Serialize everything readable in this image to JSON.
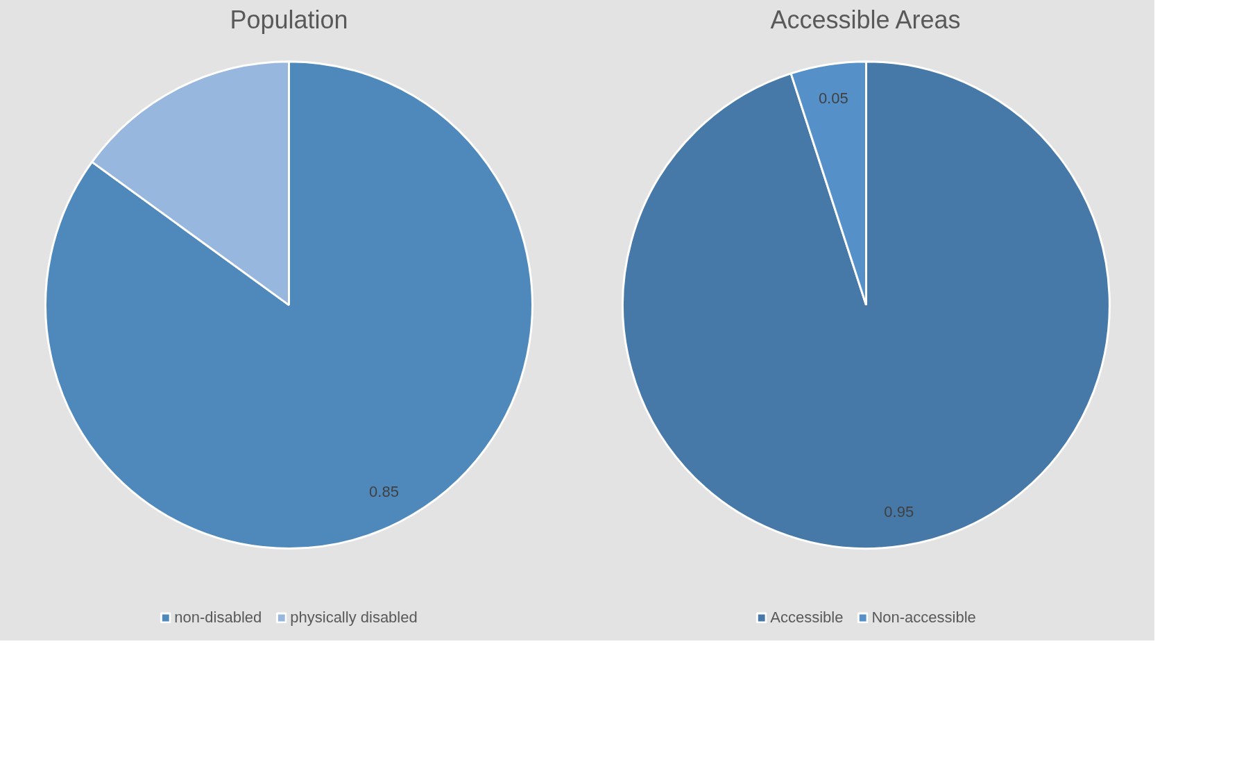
{
  "chart_data": [
    {
      "type": "pie",
      "title": "Population",
      "categories": [
        "non-disabled",
        "physically disabled"
      ],
      "values": [
        0.85,
        0.15
      ],
      "colors": [
        "#4f89bc",
        "#97b7de"
      ],
      "value_labels": [
        "0.85",
        null
      ],
      "legend": "bottom"
    },
    {
      "type": "pie",
      "title": "Accessible Areas",
      "categories": [
        "Accessible",
        "Non-accessible"
      ],
      "values": [
        0.95,
        0.05
      ],
      "colors": [
        "#4679a8",
        "#5591c8"
      ],
      "value_labels": [
        "0.95",
        "0.05"
      ],
      "legend": "bottom"
    }
  ]
}
